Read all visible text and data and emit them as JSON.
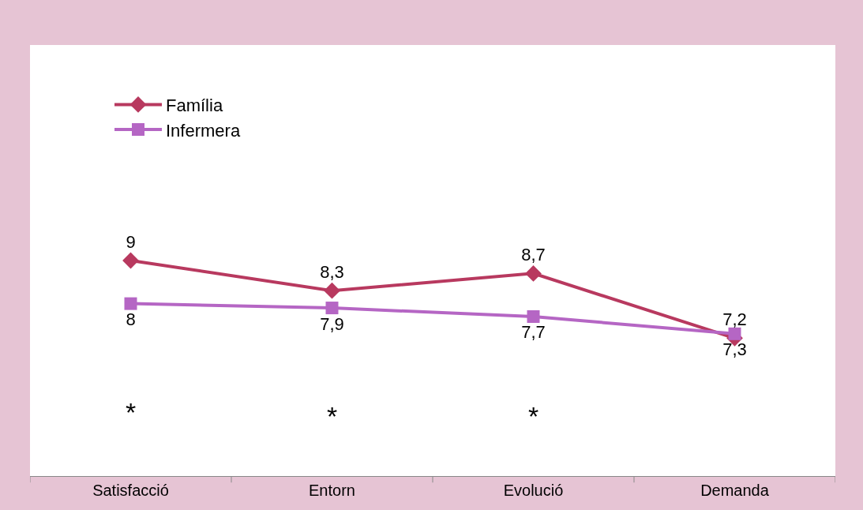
{
  "chart_data": {
    "type": "line",
    "categories": [
      "Satisfacció",
      "Entorn",
      "Evolució",
      "Demanda"
    ],
    "series": [
      {
        "name": "Família",
        "color": "#b8395f",
        "marker": "diamond",
        "values": [
          9,
          8.3,
          8.7,
          7.2
        ],
        "value_labels": [
          "9",
          "8,3",
          "8,7",
          "7,2"
        ]
      },
      {
        "name": "Infermera",
        "color": "#b566c4",
        "marker": "square",
        "values": [
          8,
          7.9,
          7.7,
          7.3
        ],
        "value_labels": [
          "8",
          "7,9",
          "7,7",
          "7,3"
        ]
      }
    ],
    "ylim": [
      4,
      14
    ],
    "tick_labels": "x",
    "grid": false,
    "legend": "top left",
    "annotations": [
      "*",
      "*",
      "*"
    ]
  }
}
